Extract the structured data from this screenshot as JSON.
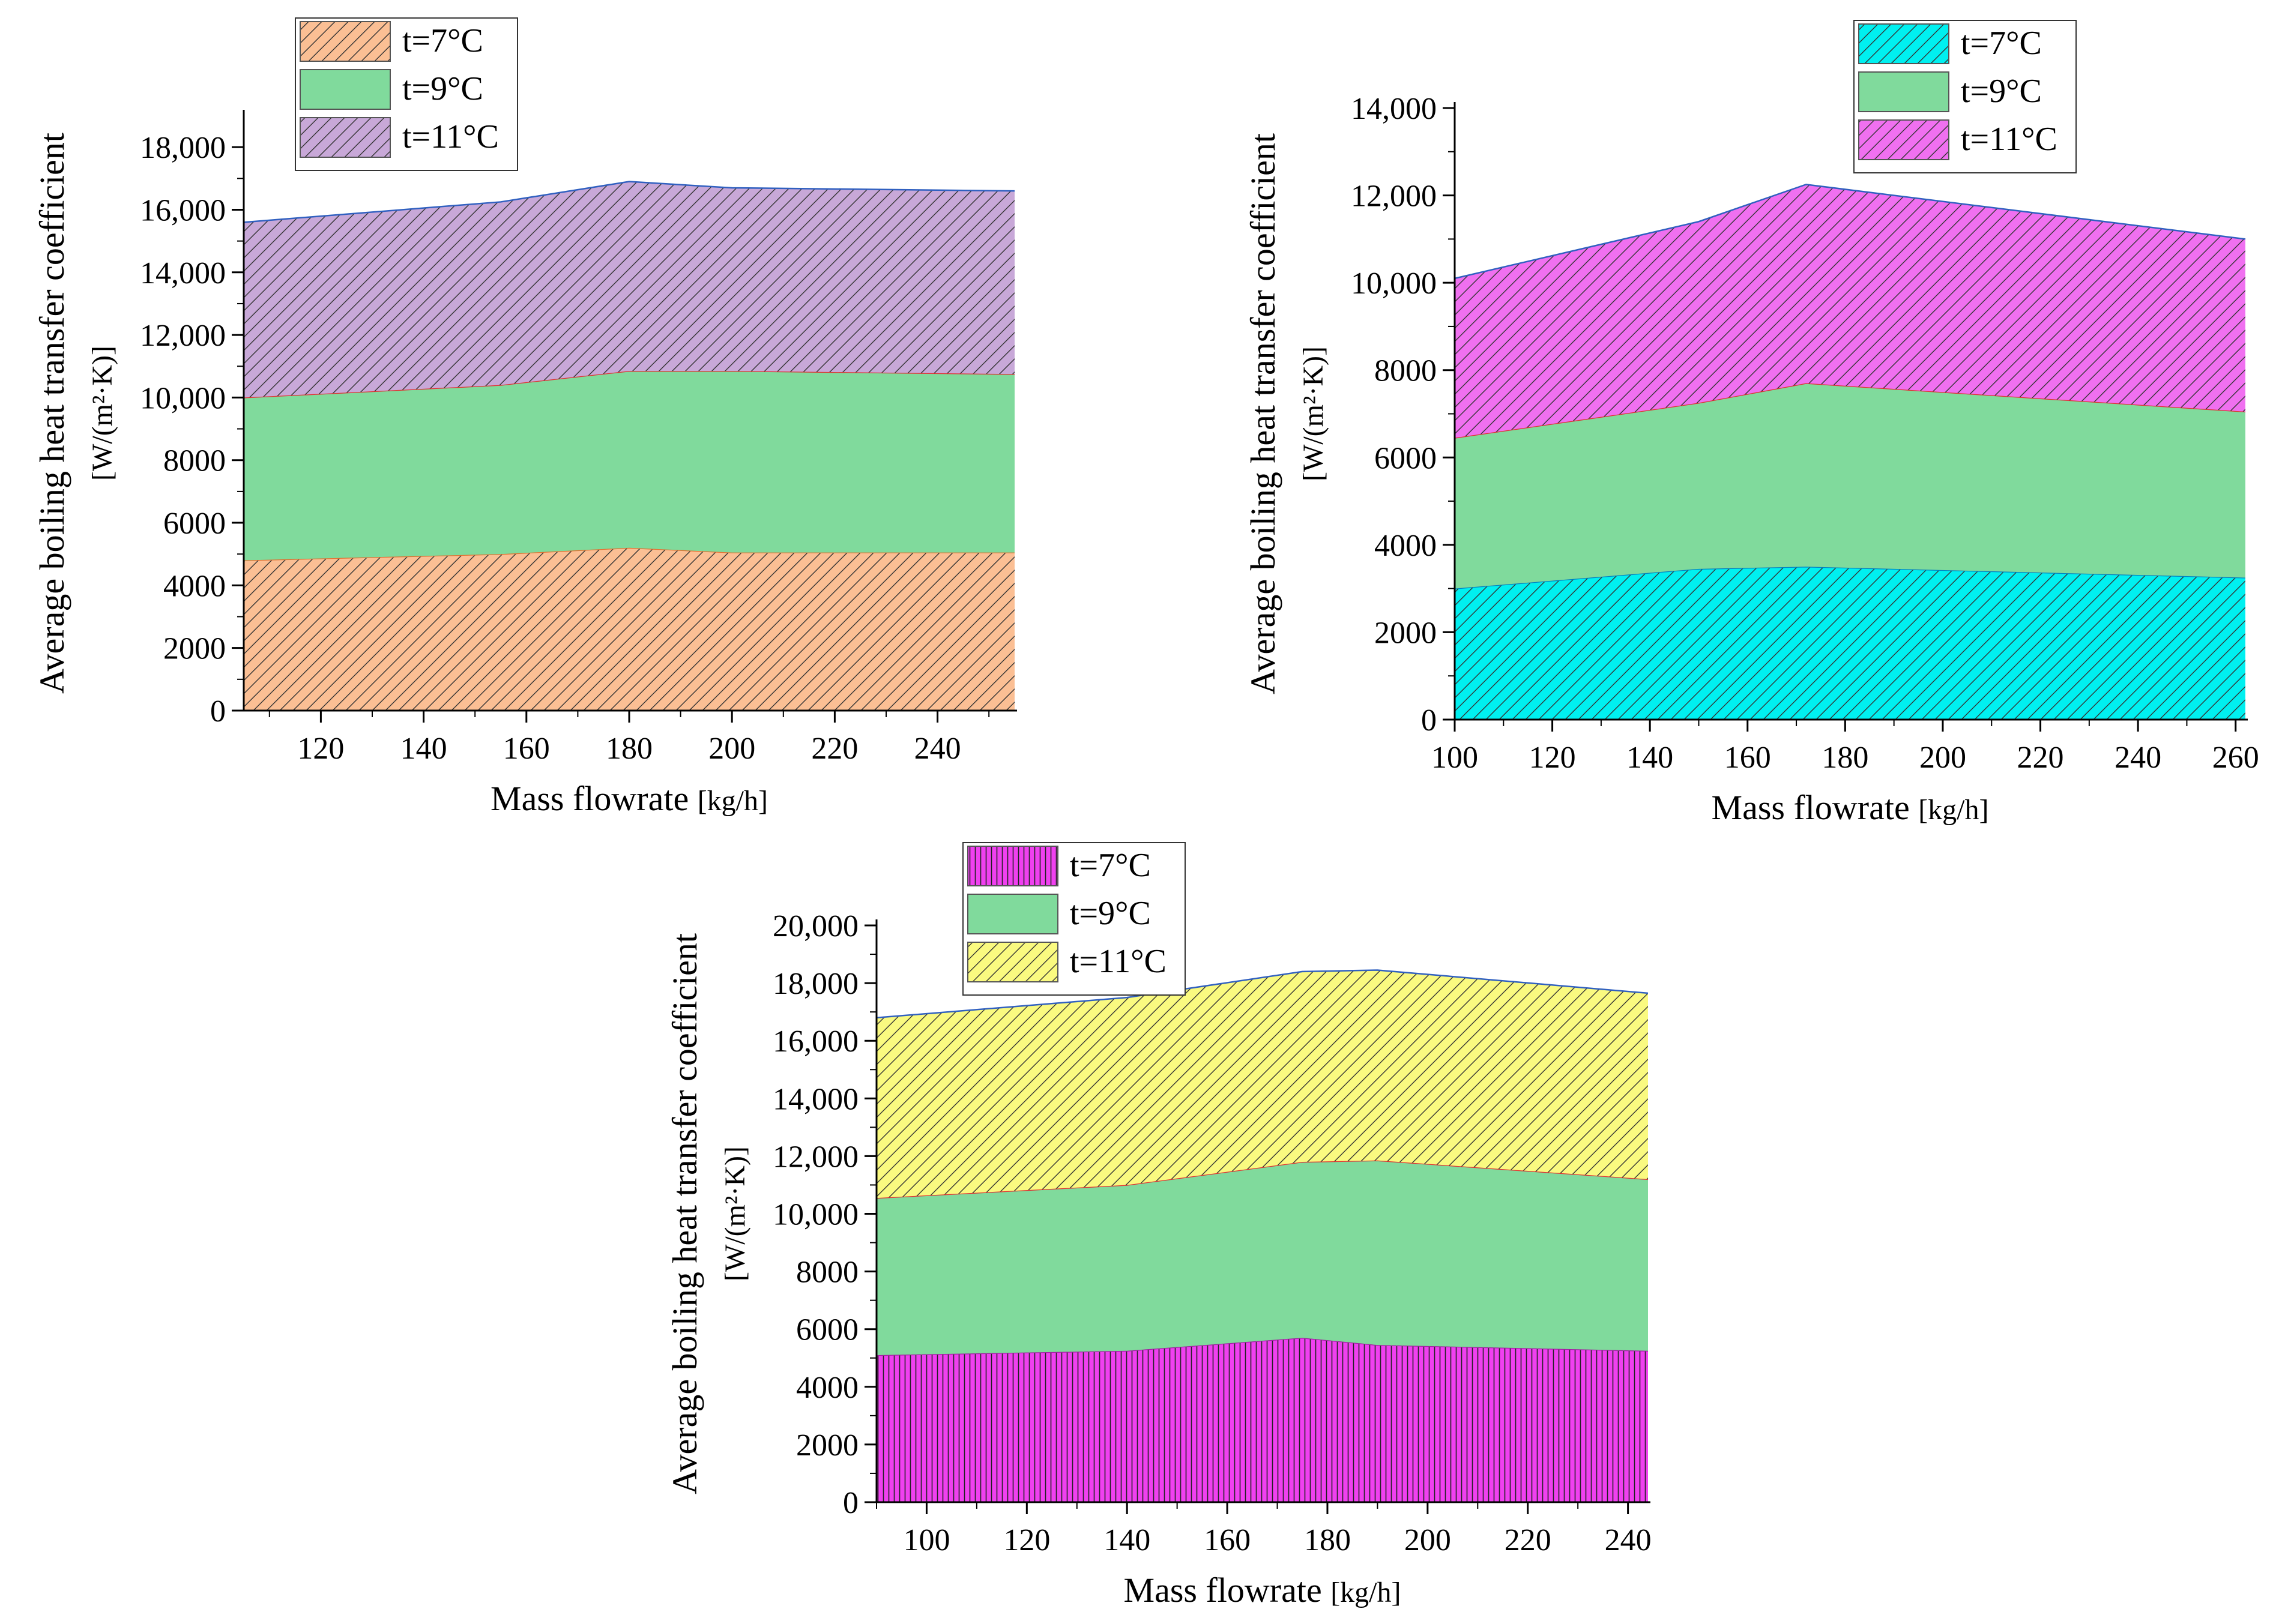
{
  "figure": {
    "description": ""
  },
  "chart_data": [
    {
      "type": "area",
      "stacked": true,
      "xlabel": "Mass flowrate",
      "xlabel_unit": "[kg/h]",
      "ylabel": "Average boiling heat transfer coefficient",
      "ylabel_unit": "[W/(m²·K)]",
      "xlim": [
        105,
        255
      ],
      "ylim": [
        0,
        19000
      ],
      "xticks": [
        120,
        140,
        160,
        180,
        200,
        220,
        240
      ],
      "yticks": [
        0,
        2000,
        4000,
        6000,
        8000,
        10000,
        12000,
        14000,
        16000,
        18000
      ],
      "ytick_labels": [
        "0",
        "2000",
        "4000",
        "6000",
        "8000",
        "10,000",
        "12,000",
        "14,000",
        "16,000",
        "18,000"
      ],
      "x": [
        105,
        155,
        180,
        200,
        255
      ],
      "legend_position": "top-left",
      "series": [
        {
          "name": "t=7°C",
          "values": [
            4800,
            5000,
            5200,
            5050,
            5050
          ],
          "color": "#fbbf94",
          "edge": "#e07030",
          "pattern": "diag"
        },
        {
          "name": "t=9°C",
          "values": [
            5200,
            5400,
            5650,
            5800,
            5700
          ],
          "color": "#80da9c",
          "edge": "#e03030",
          "pattern": "none"
        },
        {
          "name": "t=11°C",
          "values": [
            5600,
            5850,
            6050,
            5850,
            5850
          ],
          "color": "#c8a8d8",
          "edge": "#3060c0",
          "pattern": "diag"
        }
      ]
    },
    {
      "type": "area",
      "stacked": true,
      "xlabel": "Mass flowrate",
      "xlabel_unit": "[kg/h]",
      "ylabel": "Average boiling heat transfer coefficient",
      "ylabel_unit": "[W/(m²·K)]",
      "xlim": [
        100,
        262
      ],
      "ylim": [
        0,
        14000
      ],
      "xticks": [
        100,
        120,
        140,
        160,
        180,
        200,
        220,
        240,
        260
      ],
      "yticks": [
        0,
        2000,
        4000,
        6000,
        8000,
        10000,
        12000,
        14000
      ],
      "ytick_labels": [
        "0",
        "2000",
        "4000",
        "6000",
        "8000",
        "10,000",
        "12,000",
        "14,000"
      ],
      "x": [
        100,
        150,
        172,
        262
      ],
      "legend_position": "top-right",
      "series": [
        {
          "name": "t=7°C",
          "values": [
            3000,
            3450,
            3500,
            3250
          ],
          "color": "#00f0f0",
          "edge": "#0080c0",
          "pattern": "diag"
        },
        {
          "name": "t=9°C",
          "values": [
            3450,
            3800,
            4200,
            3800
          ],
          "color": "#80da9c",
          "edge": "#e03030",
          "pattern": "none"
        },
        {
          "name": "t=11°C",
          "values": [
            3650,
            4150,
            4550,
            3950
          ],
          "color": "#f070f0",
          "edge": "#3060c0",
          "pattern": "diag"
        }
      ]
    },
    {
      "type": "area",
      "stacked": true,
      "xlabel": "Mass flowrate",
      "xlabel_unit": "[kg/h]",
      "ylabel": "Average boiling heat transfer coefficient",
      "ylabel_unit": "[W/(m²·K)]",
      "xlim": [
        90,
        244
      ],
      "ylim": [
        0,
        20000
      ],
      "xticks": [
        100,
        120,
        140,
        160,
        180,
        200,
        220,
        240
      ],
      "yticks": [
        0,
        2000,
        4000,
        6000,
        8000,
        10000,
        12000,
        14000,
        16000,
        18000,
        20000
      ],
      "ytick_labels": [
        "0",
        "2000",
        "4000",
        "6000",
        "8000",
        "10,000",
        "12,000",
        "14,000",
        "16,000",
        "18,000",
        "20,000"
      ],
      "x": [
        90,
        140,
        175,
        190,
        244
      ],
      "legend_position": "top-left",
      "series": [
        {
          "name": "t=7°C",
          "values": [
            5100,
            5250,
            5700,
            5450,
            5250
          ],
          "color": "#f040f0",
          "edge": "#a020a0",
          "pattern": "vert"
        },
        {
          "name": "t=9°C",
          "values": [
            5450,
            5750,
            6100,
            6400,
            5950
          ],
          "color": "#80da9c",
          "edge": "#e03030",
          "pattern": "none"
        },
        {
          "name": "t=11°C",
          "values": [
            6250,
            6500,
            6600,
            6600,
            6450
          ],
          "color": "#fafa80",
          "edge": "#3060c0",
          "pattern": "diag"
        }
      ]
    }
  ]
}
